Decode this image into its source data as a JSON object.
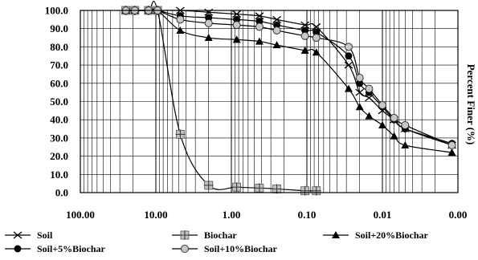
{
  "chart_data": {
    "type": "line",
    "x_scale": "log-reversed",
    "xlim": [
      100.0,
      0.001
    ],
    "ylim": [
      0,
      100
    ],
    "grid": true,
    "ylabel": "Percent Finer (%)",
    "xlabel": "",
    "x_tick_labels": [
      "100.00",
      "10.00",
      "1.00",
      "0.10",
      "0.01",
      "0.00"
    ],
    "y_tick_labels": [
      "0.0",
      "10.0",
      "20.0",
      "30.0",
      "40.0",
      "50.0",
      "60.0",
      "70.0",
      "80.0",
      "90.0",
      "100.0"
    ],
    "legend_position": "bottom",
    "series": [
      {
        "name": "Soil",
        "marker": "x",
        "x": [
          25,
          19,
          12.5,
          9.5,
          4.75,
          2,
          0.85,
          0.425,
          0.25,
          0.106,
          0.075,
          0.028,
          0.02,
          0.015,
          0.01,
          0.007,
          0.005,
          0.0012
        ],
        "y": [
          100,
          100,
          100,
          100,
          100,
          99,
          98,
          97,
          95,
          92,
          91,
          70,
          55,
          52,
          45,
          40,
          35,
          26
        ]
      },
      {
        "name": "Biochar",
        "marker": "plus-square",
        "x": [
          25,
          19,
          12.5,
          9.5,
          4.75,
          2,
          0.85,
          0.425,
          0.25,
          0.106,
          0.075
        ],
        "y": [
          100,
          100,
          100,
          100,
          32,
          4,
          3,
          2.5,
          2,
          1,
          1
        ]
      },
      {
        "name": "Soil+20%Biochar",
        "marker": "triangle",
        "x": [
          25,
          19,
          12.5,
          9.5,
          4.75,
          2,
          0.85,
          0.425,
          0.25,
          0.106,
          0.075,
          0.028,
          0.02,
          0.015,
          0.01,
          0.007,
          0.005,
          0.0012
        ],
        "y": [
          100,
          100,
          100,
          100,
          89,
          85,
          84,
          83,
          81,
          78,
          77,
          57,
          47,
          42,
          37,
          31,
          26,
          22
        ]
      },
      {
        "name": "Soil+5%Biochar",
        "marker": "filled-circle",
        "x": [
          25,
          19,
          12.5,
          9.5,
          4.75,
          2,
          0.85,
          0.425,
          0.25,
          0.106,
          0.075,
          0.028,
          0.02,
          0.015,
          0.01,
          0.007,
          0.005,
          0.0012
        ],
        "y": [
          100,
          100,
          100,
          100,
          97,
          96,
          95,
          94,
          92,
          89,
          88,
          75,
          60,
          55,
          47,
          40,
          35,
          27
        ]
      },
      {
        "name": "Soil+10%Biochar",
        "marker": "open-circle",
        "x": [
          25,
          19,
          12.5,
          9.5,
          4.75,
          2,
          0.85,
          0.425,
          0.25,
          0.106,
          0.075,
          0.028,
          0.02,
          0.015,
          0.01,
          0.007,
          0.005,
          0.0012
        ],
        "y": [
          100,
          100,
          100,
          100,
          95,
          93,
          92,
          91,
          89,
          86,
          85,
          80,
          63,
          57,
          48,
          41,
          37,
          26
        ]
      }
    ]
  }
}
